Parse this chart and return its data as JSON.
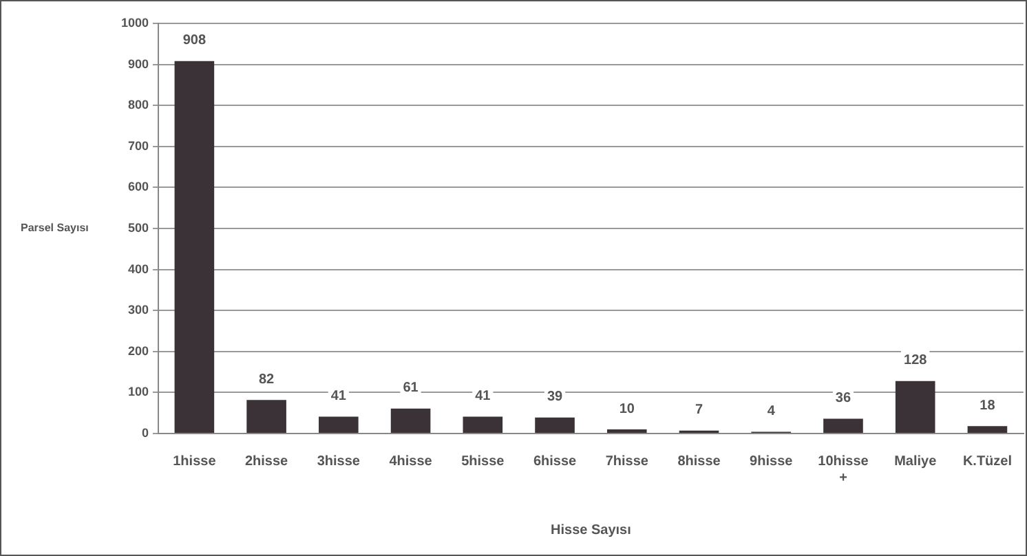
{
  "chart_data": {
    "type": "bar",
    "xlabel": "Hisse Sayısı",
    "ylabel": "Parsel Sayısı",
    "categories": [
      "1hisse",
      "2hisse",
      "3hisse",
      "4hisse",
      "5hisse",
      "6hisse",
      "7hisse",
      "8hisse",
      "9hisse",
      "10hisse +",
      "Maliye",
      "K.Tüzel"
    ],
    "values": [
      908,
      82,
      41,
      61,
      41,
      39,
      10,
      7,
      4,
      36,
      128,
      18
    ],
    "color": "#3a3236",
    "ylim": [
      0,
      1000
    ],
    "yticks": [
      0,
      100,
      200,
      300,
      400,
      500,
      600,
      700,
      800,
      900,
      1000
    ],
    "grid": "y",
    "legend": false,
    "data_labels": true
  }
}
